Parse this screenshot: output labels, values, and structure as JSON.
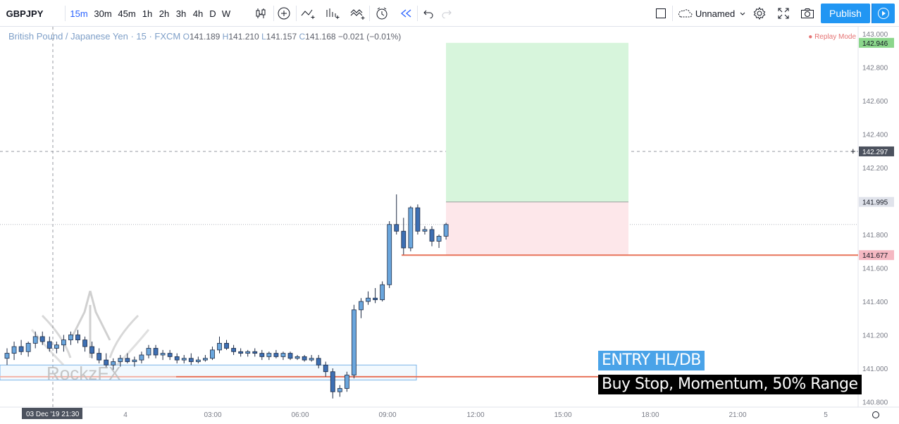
{
  "toolbar": {
    "symbol": "GBPJPY",
    "intervals": [
      "15m",
      "30m",
      "45m",
      "1h",
      "2h",
      "3h",
      "4h",
      "D",
      "W"
    ],
    "active_interval": "15m",
    "layout_name": "Unnamed",
    "publish_label": "Publish"
  },
  "legend": {
    "title": "British Pound / Japanese Yen · 15 · FXCM",
    "o_label": "O",
    "o": "141.189",
    "h_label": "H",
    "h": "141.210",
    "l_label": "L",
    "l": "141.157",
    "c_label": "C",
    "c": "141.168",
    "change": "−0.021 (−0.01%)"
  },
  "replay_label": "Replay Mode",
  "annotations": {
    "entry_title": "ENTRY HL/DB",
    "entry_detail": "Buy Stop, Momentum, 50% Range",
    "watermark": "RockzFX"
  },
  "price_labels": {
    "target": "142.946",
    "crosshair": "142.297",
    "entry": "141.995",
    "stop": "141.677"
  },
  "time_labels": {
    "crosshair": "03 Dec '19   21:30"
  },
  "colors": {
    "up_candle": "#6aa6dd",
    "down_candle": "#3d6fb3",
    "profit_zone": "#d7f5dc",
    "loss_zone": "#fde7ea",
    "level_line": "#e8735a",
    "accent": "#2196f3"
  },
  "chart_data": {
    "type": "candlestick",
    "y_axis_ticks": [
      "143.000",
      "142.800",
      "142.600",
      "142.400",
      "142.200",
      "142.000",
      "141.800",
      "141.600",
      "141.400",
      "141.200",
      "141.000",
      "140.800"
    ],
    "x_axis_ticks": [
      "4",
      "03:00",
      "06:00",
      "09:00",
      "12:00",
      "15:00",
      "18:00",
      "21:00",
      "5"
    ],
    "ylim": [
      140.78,
      143.04
    ],
    "candles": [
      [
        141.06,
        141.12,
        141.02,
        141.09
      ],
      [
        141.09,
        141.16,
        141.05,
        141.13
      ],
      [
        141.13,
        141.17,
        141.08,
        141.1
      ],
      [
        141.1,
        141.16,
        141.07,
        141.15
      ],
      [
        141.15,
        141.22,
        141.12,
        141.19
      ],
      [
        141.19,
        141.22,
        141.14,
        141.16
      ],
      [
        141.16,
        141.19,
        141.1,
        141.12
      ],
      [
        141.12,
        141.16,
        141.09,
        141.14
      ],
      [
        141.14,
        141.2,
        141.1,
        141.17
      ],
      [
        141.17,
        141.22,
        141.14,
        141.2
      ],
      [
        141.2,
        141.23,
        141.15,
        141.17
      ],
      [
        141.17,
        141.19,
        141.1,
        141.13
      ],
      [
        141.13,
        141.16,
        141.06,
        141.09
      ],
      [
        141.09,
        141.12,
        141.03,
        141.05
      ],
      [
        141.05,
        141.09,
        141.0,
        141.02
      ],
      [
        141.02,
        141.06,
        140.99,
        141.04
      ],
      [
        141.04,
        141.08,
        141.01,
        141.06
      ],
      [
        141.06,
        141.09,
        141.03,
        141.04
      ],
      [
        141.04,
        141.07,
        141.01,
        141.05
      ],
      [
        141.05,
        141.1,
        141.03,
        141.08
      ],
      [
        141.08,
        141.14,
        141.06,
        141.12
      ],
      [
        141.12,
        141.14,
        141.06,
        141.08
      ],
      [
        141.08,
        141.11,
        141.05,
        141.09
      ],
      [
        141.09,
        141.11,
        141.05,
        141.07
      ],
      [
        141.07,
        141.09,
        141.03,
        141.05
      ],
      [
        141.05,
        141.08,
        141.03,
        141.06
      ],
      [
        141.06,
        141.09,
        141.02,
        141.04
      ],
      [
        141.04,
        141.07,
        141.03,
        141.05
      ],
      [
        141.05,
        141.08,
        141.04,
        141.06
      ],
      [
        141.06,
        141.13,
        141.05,
        141.11
      ],
      [
        141.11,
        141.19,
        141.09,
        141.15
      ],
      [
        141.15,
        141.17,
        141.11,
        141.12
      ],
      [
        141.12,
        141.14,
        141.08,
        141.1
      ],
      [
        141.1,
        141.12,
        141.07,
        141.09
      ],
      [
        141.09,
        141.11,
        141.07,
        141.1
      ],
      [
        141.1,
        141.12,
        141.07,
        141.09
      ],
      [
        141.09,
        141.11,
        141.05,
        141.07
      ],
      [
        141.07,
        141.1,
        141.05,
        141.09
      ],
      [
        141.09,
        141.11,
        141.06,
        141.07
      ],
      [
        141.07,
        141.1,
        141.05,
        141.09
      ],
      [
        141.09,
        141.1,
        141.05,
        141.06
      ],
      [
        141.06,
        141.08,
        141.05,
        141.07
      ],
      [
        141.07,
        141.08,
        141.04,
        141.05
      ],
      [
        141.05,
        141.08,
        141.04,
        141.06
      ],
      [
        141.06,
        141.08,
        141.0,
        141.02
      ],
      [
        141.02,
        141.04,
        140.95,
        140.98
      ],
      [
        140.98,
        141.0,
        140.82,
        140.86
      ],
      [
        140.86,
        140.9,
        140.83,
        140.88
      ],
      [
        140.88,
        140.98,
        140.86,
        140.96
      ],
      [
        140.96,
        141.38,
        140.94,
        141.35
      ],
      [
        141.35,
        141.42,
        141.3,
        141.4
      ],
      [
        141.4,
        141.46,
        141.38,
        141.42
      ],
      [
        141.42,
        141.48,
        141.39,
        141.41
      ],
      [
        141.41,
        141.52,
        141.4,
        141.5
      ],
      [
        141.5,
        141.88,
        141.48,
        141.86
      ],
      [
        141.86,
        142.04,
        141.8,
        141.82
      ],
      [
        141.82,
        141.9,
        141.68,
        141.72
      ],
      [
        141.72,
        141.97,
        141.7,
        141.96
      ],
      [
        141.96,
        141.98,
        141.8,
        141.82
      ],
      [
        141.82,
        141.85,
        141.8,
        141.83
      ],
      [
        141.83,
        141.85,
        141.73,
        141.76
      ],
      [
        141.76,
        141.8,
        141.72,
        141.79
      ],
      [
        141.79,
        141.87,
        141.77,
        141.86
      ]
    ],
    "position": {
      "target": 142.946,
      "entry": 141.995,
      "stop": 141.677
    },
    "levels": [
      141.677,
      140.95
    ],
    "range_box": [
      140.93,
      141.02
    ]
  }
}
